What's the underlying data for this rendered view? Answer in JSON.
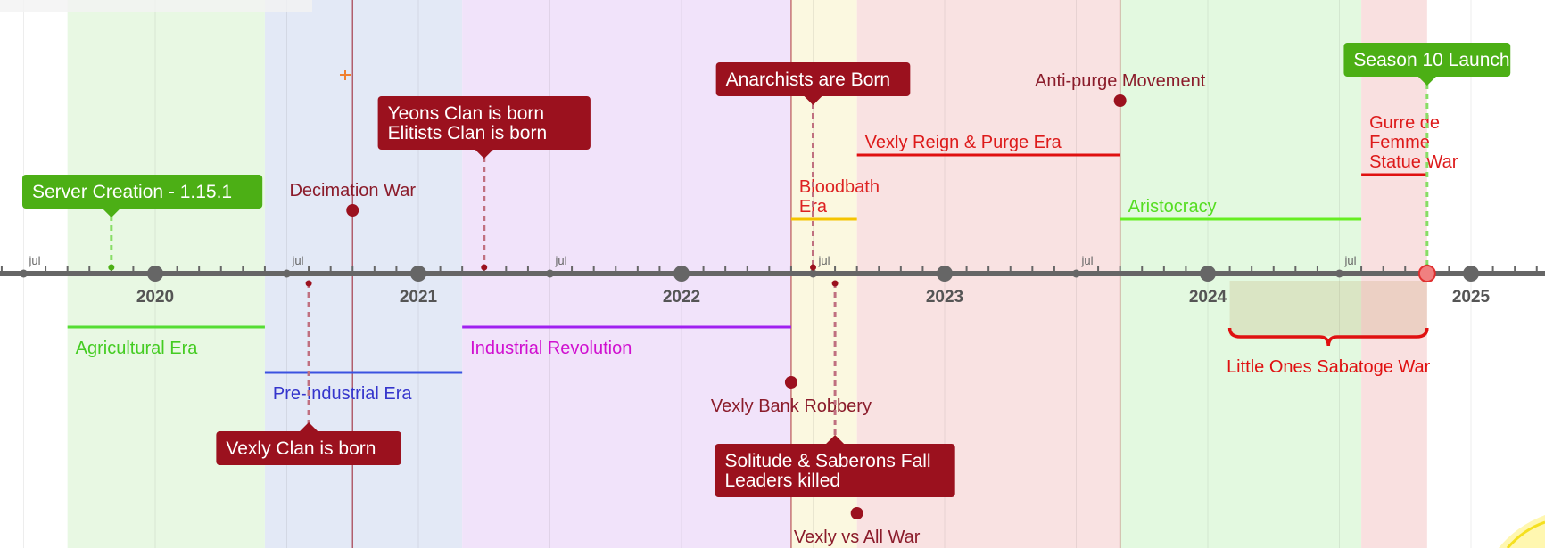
{
  "timeline": {
    "years": [
      "2020",
      "2021",
      "2022",
      "2023",
      "2024",
      "2025"
    ],
    "mid_year_label": "jul",
    "colors": {
      "axis": "#666666",
      "dark_red": "#9b111e",
      "green": "#4caf15",
      "red": "#e01010",
      "magenta": "#c000e0",
      "blue": "#3b44d6",
      "lime": "#5ee02a",
      "gold": "#f5c400"
    },
    "eras": [
      {
        "label": "Agricultural Era",
        "start": "2019-09",
        "end": "2020-06",
        "band_color": "#e8f8e3",
        "line_color": "#55dd33",
        "text_color": "#44cc22",
        "side": "below",
        "tier": 1
      },
      {
        "label": "Pre-Industrial Era",
        "start": "2020-06",
        "end": "2021-03",
        "band_color": "#e3e9f6",
        "line_color": "#3b52e0",
        "text_color": "#3535cc",
        "side": "below",
        "tier": 2
      },
      {
        "label": "Industrial Revolution",
        "start": "2021-03",
        "end": "2022-06",
        "band_color": "#f1e3fa",
        "line_color": "#a020f0",
        "text_color": "#d010d0",
        "side": "below",
        "tier": 1
      },
      {
        "label": "Bloodbath Era",
        "start": "2022-06",
        "end": "2022-09",
        "band_color": "#fbf8e0",
        "line_color": "#f5c400",
        "text_color": "#dd2222",
        "side": "above",
        "tier": 1
      },
      {
        "label": "Vexly Reign & Purge Era",
        "start": "2022-09",
        "end": "2023-09",
        "band_color": "#f9e2e2",
        "line_color": "#e01010",
        "text_color": "#dd1a1a",
        "side": "above",
        "tier": 2
      },
      {
        "label": "Aristocracy",
        "start": "2023-09",
        "end": "2024-08",
        "band_color": "#e3f9e0",
        "line_color": "#66ee22",
        "text_color": "#55dd22",
        "side": "above",
        "tier": 1
      },
      {
        "label": "Gurre de Femme Statue War",
        "start": "2024-08",
        "end": "2024-11",
        "band_color": "#f9e0e0",
        "line_color": "#e01010",
        "text_color": "#dd1a1a",
        "side": "above",
        "tier": 3
      }
    ],
    "vertical_lines": [
      {
        "date": "2020-10",
        "color": "#9b2233"
      },
      {
        "date": "2022-06",
        "color": "#b04040"
      },
      {
        "date": "2023-09",
        "color": "#b04040"
      }
    ],
    "point_events": [
      {
        "label": "Decimation War",
        "date": "2020-10",
        "side": "above",
        "tier": 1
      },
      {
        "label": "Anti-purge Movement",
        "date": "2023-09",
        "side": "above",
        "tier": 3
      },
      {
        "label": "Vexly Bank Robbery",
        "date": "2022-06",
        "side": "below",
        "tier": 2
      },
      {
        "label": "Vexly vs All War",
        "date": "2022-09",
        "side": "below",
        "tier": 4
      }
    ],
    "boxes": [
      {
        "lines": [
          "Server Creation - 1.15.1"
        ],
        "date": "2019-11",
        "color": "#4caf15",
        "side": "above",
        "tier": 1
      },
      {
        "lines": [
          "Yeons Clan is born",
          "Elitists Clan is born"
        ],
        "date": "2021-04",
        "color": "#9b111e",
        "side": "above",
        "tier": 2
      },
      {
        "lines": [
          "Anarchists are Born"
        ],
        "date": "2022-07",
        "color": "#9b111e",
        "side": "above",
        "tier": 3
      },
      {
        "lines": [
          "Season 10 Launch"
        ],
        "date": "2024-11",
        "color": "#4caf15",
        "side": "above",
        "tier": 4
      },
      {
        "lines": [
          "Vexly Clan is born"
        ],
        "date": "2020-08",
        "color": "#9b111e",
        "side": "below",
        "tier": 1
      },
      {
        "lines": [
          "Solitude & Saberons Fall",
          "Leaders killed"
        ],
        "date": "2022-08",
        "color": "#9b111e",
        "side": "below",
        "tier": 2
      }
    ],
    "ranges": [
      {
        "label": "Little Ones Sabatoge War",
        "start": "2024-02",
        "end": "2024-11",
        "color": "#e01010"
      }
    ]
  }
}
